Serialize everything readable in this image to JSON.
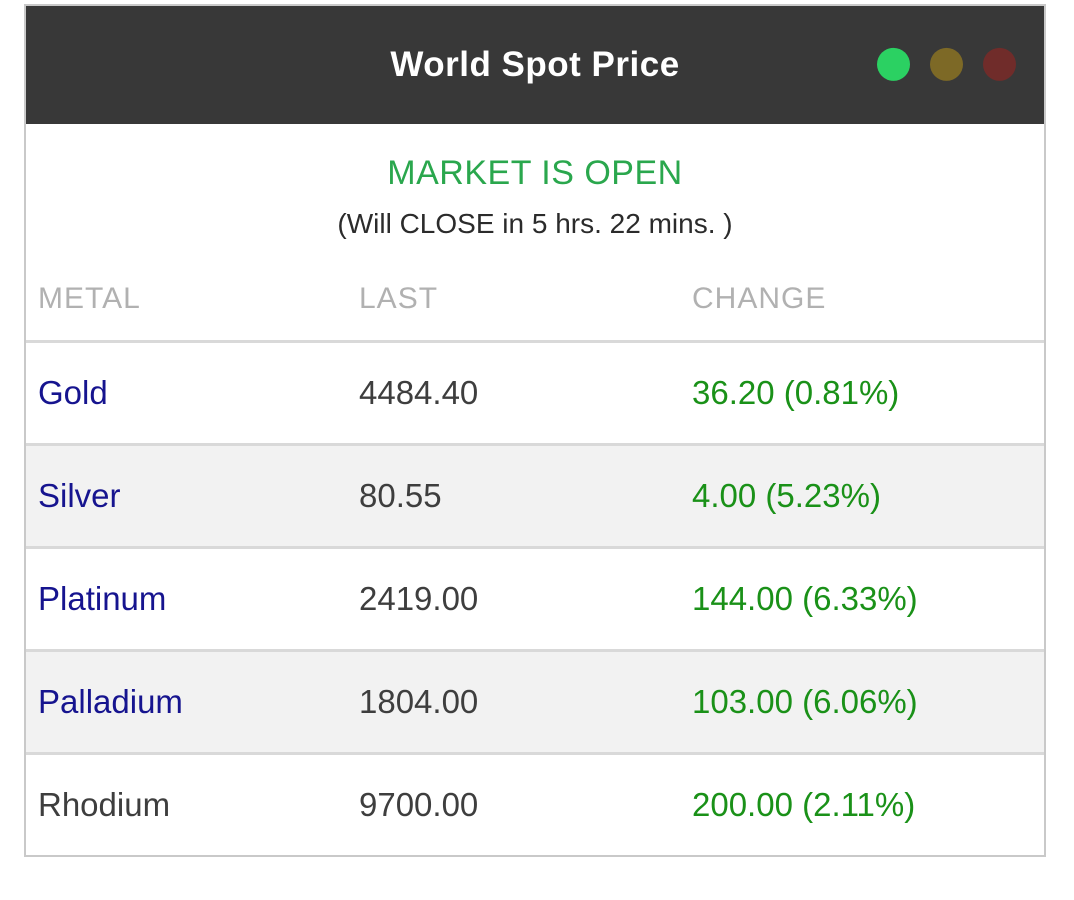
{
  "widget": {
    "title": "World Spot Price",
    "indicator_lights": [
      {
        "name": "green-light",
        "color": "#2bd162"
      },
      {
        "name": "amber-light",
        "color": "#7d6926"
      },
      {
        "name": "red-light",
        "color": "#702c2a"
      }
    ]
  },
  "status": {
    "market_state": "MARKET IS OPEN",
    "market_state_color": "#2aa74d",
    "countdown": "(Will CLOSE in 5 hrs. 22 mins. )"
  },
  "table": {
    "headers": {
      "metal": "METAL",
      "last": "LAST",
      "change": "CHANGE"
    },
    "change_color": "#1a9118",
    "metal_link_color": "#16148f",
    "rows": [
      {
        "metal": "Gold",
        "last": "4484.40",
        "change": "36.20 (0.81%)",
        "is_link": true
      },
      {
        "metal": "Silver",
        "last": "80.55",
        "change": "4.00 (5.23%)",
        "is_link": true
      },
      {
        "metal": "Platinum",
        "last": "2419.00",
        "change": "144.00 (6.33%)",
        "is_link": true
      },
      {
        "metal": "Palladium",
        "last": "1804.00",
        "change": "103.00 (6.06%)",
        "is_link": true
      },
      {
        "metal": "Rhodium",
        "last": "9700.00",
        "change": "200.00 (2.11%)",
        "is_link": false
      }
    ]
  }
}
